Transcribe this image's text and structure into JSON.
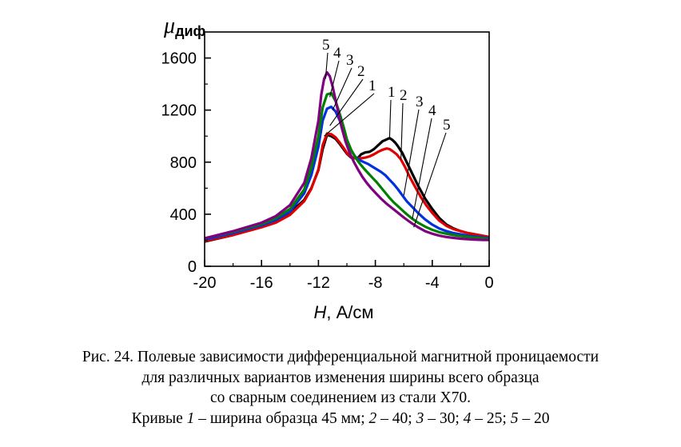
{
  "chart_data": {
    "type": "line",
    "ylabel_symbol": "μ",
    "ylabel_subscript": "диф",
    "xlabel_symbol": "H",
    "xlabel_unit": ", А/см",
    "xlim": [
      -20,
      0
    ],
    "ylim": [
      0,
      1800
    ],
    "xticks": [
      -20,
      -16,
      -12,
      -8,
      -4,
      0
    ],
    "yticks": [
      0,
      400,
      800,
      1200,
      1600
    ],
    "grid": false,
    "legend": "none",
    "series": [
      {
        "label": "1",
        "color": "#000000",
        "x": [
          -20,
          -18,
          -16,
          -15,
          -14,
          -13,
          -12.5,
          -12,
          -11.7,
          -11.4,
          -11.1,
          -10.8,
          -10.5,
          -10.2,
          -10,
          -9.7,
          -9.4,
          -9.2,
          -9,
          -8.7,
          -8.4,
          -8.1,
          -7.8,
          -7.5,
          -7.2,
          -7,
          -6.8,
          -6.6,
          -6.4,
          -6.1,
          -5.8,
          -5.4,
          -5,
          -4.5,
          -4,
          -3.5,
          -3,
          -2.5,
          -2,
          -1.5,
          -1,
          -0.5,
          0
        ],
        "y": [
          190,
          240,
          305,
          345,
          410,
          510,
          600,
          740,
          900,
          1010,
          1000,
          980,
          940,
          895,
          865,
          835,
          830,
          835,
          860,
          875,
          880,
          900,
          930,
          960,
          975,
          985,
          970,
          950,
          920,
          870,
          800,
          710,
          620,
          520,
          440,
          370,
          320,
          290,
          270,
          255,
          245,
          235,
          225
        ]
      },
      {
        "label": "2",
        "color": "#e00000",
        "x": [
          -20,
          -18,
          -16,
          -15,
          -14,
          -13,
          -12.5,
          -12,
          -11.7,
          -11.4,
          -11.1,
          -10.8,
          -10.5,
          -10.2,
          -10,
          -9.7,
          -9.4,
          -9.2,
          -9,
          -8.7,
          -8.4,
          -8.1,
          -7.8,
          -7.5,
          -7.2,
          -7,
          -6.8,
          -6.5,
          -6.2,
          -5.9,
          -5.6,
          -5.2,
          -4.8,
          -4.4,
          -4,
          -3.5,
          -3,
          -2.5,
          -2,
          -1.5,
          -1,
          -0.5,
          0
        ],
        "y": [
          195,
          240,
          300,
          335,
          395,
          500,
          595,
          745,
          930,
          1020,
          1015,
          990,
          950,
          905,
          870,
          840,
          830,
          830,
          830,
          835,
          845,
          860,
          880,
          895,
          905,
          900,
          885,
          860,
          820,
          760,
          690,
          610,
          530,
          465,
          410,
          350,
          310,
          285,
          270,
          255,
          245,
          235,
          225
        ]
      },
      {
        "label": "3",
        "color": "#0030e0",
        "x": [
          -20,
          -18,
          -16,
          -15,
          -14,
          -13,
          -12.5,
          -12,
          -11.7,
          -11.4,
          -11.1,
          -10.8,
          -10.5,
          -10.2,
          -10,
          -9.7,
          -9.4,
          -9.1,
          -8.8,
          -8.5,
          -8.2,
          -7.9,
          -7.6,
          -7.3,
          -7,
          -6.7,
          -6.4,
          -6.1,
          -5.8,
          -5.4,
          -5,
          -4.5,
          -4,
          -3.5,
          -3,
          -2.5,
          -2,
          -1.5,
          -1,
          -0.5,
          0
        ],
        "y": [
          205,
          255,
          315,
          355,
          420,
          560,
          700,
          920,
          1120,
          1210,
          1225,
          1190,
          1120,
          1030,
          960,
          890,
          840,
          815,
          800,
          785,
          765,
          745,
          725,
          700,
          665,
          630,
          590,
          545,
          500,
          455,
          410,
          360,
          320,
          290,
          270,
          255,
          245,
          235,
          228,
          222,
          215
        ]
      },
      {
        "label": "4",
        "color": "#008000",
        "x": [
          -20,
          -18,
          -16,
          -15,
          -14,
          -13,
          -12.5,
          -12,
          -11.7,
          -11.4,
          -11.1,
          -10.8,
          -10.5,
          -10.2,
          -10,
          -9.7,
          -9.4,
          -9.1,
          -8.8,
          -8.5,
          -8.2,
          -7.9,
          -7.6,
          -7.3,
          -7,
          -6.7,
          -6.4,
          -6.1,
          -5.8,
          -5.4,
          -5,
          -4.5,
          -4,
          -3.5,
          -3,
          -2.5,
          -2,
          -1.5,
          -1,
          -0.5,
          0
        ],
        "y": [
          215,
          265,
          325,
          370,
          440,
          590,
          760,
          1000,
          1220,
          1320,
          1330,
          1270,
          1170,
          1060,
          975,
          895,
          835,
          790,
          750,
          715,
          680,
          645,
          605,
          565,
          525,
          490,
          460,
          430,
          400,
          365,
          335,
          305,
          280,
          262,
          250,
          240,
          232,
          226,
          220,
          215,
          210
        ]
      },
      {
        "label": "5",
        "color": "#800080",
        "x": [
          -20,
          -18,
          -16,
          -15,
          -14,
          -13,
          -12.5,
          -12,
          -11.8,
          -11.6,
          -11.4,
          -11.2,
          -11,
          -10.7,
          -10.4,
          -10.1,
          -9.8,
          -9.5,
          -9.2,
          -8.9,
          -8.6,
          -8.3,
          -8,
          -7.6,
          -7.2,
          -6.8,
          -6.4,
          -6,
          -5.5,
          -5,
          -4.5,
          -4,
          -3.5,
          -3,
          -2.5,
          -2,
          -1.5,
          -1,
          -0.5,
          0
        ],
        "y": [
          215,
          270,
          335,
          385,
          470,
          640,
          830,
          1120,
          1320,
          1440,
          1490,
          1460,
          1380,
          1230,
          1080,
          960,
          870,
          800,
          740,
          685,
          640,
          600,
          565,
          520,
          480,
          445,
          410,
          375,
          335,
          300,
          270,
          250,
          235,
          225,
          218,
          212,
          208,
          205,
          203,
          202
        ]
      }
    ],
    "annotations": {
      "left_group": [
        "5",
        "4",
        "3",
        "2",
        "1"
      ],
      "right_group": [
        "1",
        "2",
        "3",
        "4",
        "5"
      ]
    }
  },
  "caption": {
    "line1": "Рис. 24. Полевые зависимости дифференциальной магнитной проницаемости",
    "line2": "для различных вариантов изменения ширины всего образца",
    "line3": "со сварным соединением из стали Х70.",
    "line4_prefix": "Кривые ",
    "line4_parts": [
      {
        "num": "1",
        "text": " – ширина образца 45 мм; "
      },
      {
        "num": "2",
        "text": " – 40; "
      },
      {
        "num": "3",
        "text": " – 30; "
      },
      {
        "num": "4",
        "text": " – 25; "
      },
      {
        "num": "5",
        "text": " – 20"
      }
    ]
  }
}
